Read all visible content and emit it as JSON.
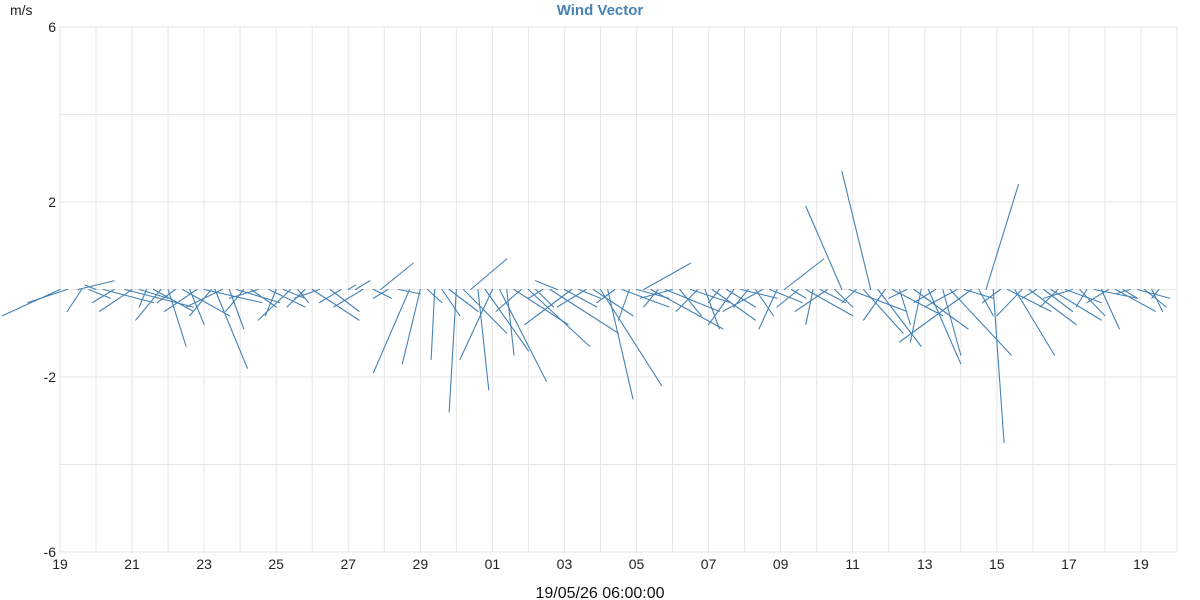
{
  "chart_data": {
    "type": "line",
    "title": "Wind Vector",
    "ylabel": "m/s",
    "xlabel": "19/05/26 06:00:00",
    "ylim": [
      -6,
      6
    ],
    "y_ticks": [
      "-6",
      "-2",
      "2",
      "6"
    ],
    "x_tick_labels": [
      "19",
      "21",
      "23",
      "25",
      "27",
      "29",
      "01",
      "03",
      "05",
      "07",
      "09",
      "11",
      "13",
      "15",
      "17",
      "19"
    ],
    "grid": true,
    "series": [
      {
        "color": "#4682b4",
        "vectors": [
          {
            "x": 19.0,
            "u": -1.6,
            "v": -0.6
          },
          {
            "x": 19.2,
            "u": -1.1,
            "v": -0.3
          },
          {
            "x": 19.5,
            "u": 1.0,
            "v": 0.2
          },
          {
            "x": 19.6,
            "u": -0.4,
            "v": -0.5
          },
          {
            "x": 19.8,
            "u": 0.6,
            "v": -0.2
          },
          {
            "x": 20.0,
            "u": -0.3,
            "v": 0.1
          },
          {
            "x": 20.2,
            "u": 1.4,
            "v": -0.3
          },
          {
            "x": 20.5,
            "u": -0.6,
            "v": -0.3
          },
          {
            "x": 20.8,
            "u": 1.9,
            "v": -0.4
          },
          {
            "x": 21.0,
            "u": -0.9,
            "v": -0.5
          },
          {
            "x": 21.2,
            "u": 0.8,
            "v": -0.2
          },
          {
            "x": 21.4,
            "u": -0.2,
            "v": -0.4
          },
          {
            "x": 21.6,
            "u": 1.1,
            "v": -0.5
          },
          {
            "x": 21.8,
            "u": -0.7,
            "v": -0.7
          },
          {
            "x": 22.0,
            "u": 0.5,
            "v": -1.3
          },
          {
            "x": 22.2,
            "u": -0.5,
            "v": -0.3
          },
          {
            "x": 22.4,
            "u": 1.3,
            "v": -0.6
          },
          {
            "x": 22.6,
            "u": 0.4,
            "v": -0.8
          },
          {
            "x": 22.8,
            "u": -0.9,
            "v": -0.5
          },
          {
            "x": 23.0,
            "u": 1.6,
            "v": -0.3
          },
          {
            "x": 23.2,
            "u": -0.6,
            "v": -0.6
          },
          {
            "x": 23.3,
            "u": 0.9,
            "v": -1.8
          },
          {
            "x": 23.5,
            "u": -1.0,
            "v": -0.4
          },
          {
            "x": 23.7,
            "u": 0.4,
            "v": -0.9
          },
          {
            "x": 23.9,
            "u": 1.2,
            "v": -0.3
          },
          {
            "x": 24.1,
            "u": -0.5,
            "v": -0.5
          },
          {
            "x": 24.3,
            "u": 0.7,
            "v": -0.4
          },
          {
            "x": 24.5,
            "u": -0.8,
            "v": -0.2
          },
          {
            "x": 24.8,
            "u": 1.0,
            "v": -0.4
          },
          {
            "x": 25.0,
            "u": -0.3,
            "v": -0.6
          },
          {
            "x": 25.2,
            "u": 0.6,
            "v": -0.2
          },
          {
            "x": 25.4,
            "u": -0.9,
            "v": -0.7
          },
          {
            "x": 25.6,
            "u": 0.3,
            "v": -0.3
          },
          {
            "x": 25.8,
            "u": -0.5,
            "v": -0.4
          },
          {
            "x": 26.0,
            "u": 1.3,
            "v": -0.7
          },
          {
            "x": 26.2,
            "u": -0.7,
            "v": -0.2
          },
          {
            "x": 26.5,
            "u": 0.8,
            "v": -0.5
          },
          {
            "x": 26.8,
            "u": -0.6,
            "v": -0.3
          },
          {
            "x": 27.0,
            "u": 0.2,
            "v": 0.1
          },
          {
            "x": 27.2,
            "u": 0.4,
            "v": 0.2
          },
          {
            "x": 27.4,
            "u": -0.8,
            "v": -0.4
          },
          {
            "x": 27.7,
            "u": 0.5,
            "v": -0.2
          },
          {
            "x": 27.9,
            "u": 0.9,
            "v": 0.6
          },
          {
            "x": 28.1,
            "u": -0.4,
            "v": -0.2
          },
          {
            "x": 28.4,
            "u": 0.6,
            "v": -0.1
          },
          {
            "x": 28.7,
            "u": -1.0,
            "v": -1.9
          },
          {
            "x": 29.0,
            "u": -0.5,
            "v": -1.7
          },
          {
            "x": 29.2,
            "u": 0.4,
            "v": -0.3
          },
          {
            "x": 29.4,
            "u": -0.1,
            "v": -1.6
          },
          {
            "x": 29.6,
            "u": 0.5,
            "v": -0.6
          },
          {
            "x": 29.8,
            "u": 0.8,
            "v": -0.5
          },
          {
            "x": 30.0,
            "u": -0.2,
            "v": -2.8
          },
          {
            "x": 30.2,
            "u": 1.2,
            "v": -1.0
          },
          {
            "x": 30.4,
            "u": 1.0,
            "v": 0.7
          },
          {
            "x": 30.6,
            "u": 0.3,
            "v": -2.3
          },
          {
            "x": 30.8,
            "u": 1.2,
            "v": -1.4
          },
          {
            "x": 31.0,
            "u": -0.9,
            "v": -1.6
          },
          {
            "x": 31.2,
            "u": 1.3,
            "v": -2.1
          },
          {
            "x": 31.4,
            "u": 0.2,
            "v": -1.5
          },
          {
            "x": 31.6,
            "u": 1.5,
            "v": -0.8
          },
          {
            "x": 31.8,
            "u": -0.7,
            "v": -0.5
          },
          {
            "x": 32.0,
            "u": 1.7,
            "v": -1.3
          },
          {
            "x": 32.2,
            "u": 0.5,
            "v": -0.4
          },
          {
            "x": 32.4,
            "u": -0.4,
            "v": -0.2
          },
          {
            "x": 32.6,
            "u": 1.9,
            "v": -1.0
          },
          {
            "x": 32.8,
            "u": -0.6,
            "v": 0.2
          },
          {
            "x": 33.0,
            "u": 0.9,
            "v": -0.4
          },
          {
            "x": 33.2,
            "u": -1.3,
            "v": -0.8
          },
          {
            "x": 33.4,
            "u": 0.6,
            "v": -0.2
          },
          {
            "x": 33.6,
            "u": -0.8,
            "v": -0.4
          },
          {
            "x": 33.8,
            "u": 1.1,
            "v": -0.6
          },
          {
            "x": 34.0,
            "u": 1.7,
            "v": -2.2
          },
          {
            "x": 34.2,
            "u": 0.7,
            "v": -2.5
          },
          {
            "x": 34.4,
            "u": -0.5,
            "v": -0.3
          },
          {
            "x": 34.6,
            "u": 1.3,
            "v": -0.4
          },
          {
            "x": 34.8,
            "u": -0.3,
            "v": -0.7
          },
          {
            "x": 35.0,
            "u": 0.9,
            "v": -0.2
          },
          {
            "x": 35.2,
            "u": 1.3,
            "v": 0.6
          },
          {
            "x": 35.4,
            "u": 2.0,
            "v": -0.9
          },
          {
            "x": 35.6,
            "u": -0.4,
            "v": -0.4
          },
          {
            "x": 35.8,
            "u": 1.5,
            "v": -0.5
          },
          {
            "x": 36.0,
            "u": -0.9,
            "v": -0.2
          },
          {
            "x": 36.2,
            "u": 0.6,
            "v": -0.6
          },
          {
            "x": 36.5,
            "u": 1.1,
            "v": -0.3
          },
          {
            "x": 36.7,
            "u": -0.6,
            "v": -0.5
          },
          {
            "x": 36.9,
            "u": 0.4,
            "v": -0.9
          },
          {
            "x": 37.1,
            "u": 1.2,
            "v": -0.7
          },
          {
            "x": 37.3,
            "u": -0.3,
            "v": -0.3
          },
          {
            "x": 37.5,
            "u": 0.8,
            "v": -0.4
          },
          {
            "x": 37.7,
            "u": -0.7,
            "v": -0.8
          },
          {
            "x": 37.9,
            "u": 1.0,
            "v": -0.2
          },
          {
            "x": 38.1,
            "u": -0.4,
            "v": -0.4
          },
          {
            "x": 38.3,
            "u": 0.5,
            "v": -0.6
          },
          {
            "x": 38.5,
            "u": -1.1,
            "v": -0.5
          },
          {
            "x": 38.7,
            "u": 0.9,
            "v": -0.3
          },
          {
            "x": 38.9,
            "u": -0.5,
            "v": -0.9
          },
          {
            "x": 39.1,
            "u": 1.1,
            "v": 0.7
          },
          {
            "x": 39.3,
            "u": 0.4,
            "v": -0.2
          },
          {
            "x": 39.5,
            "u": -0.6,
            "v": -0.4
          },
          {
            "x": 39.7,
            "u": 1.3,
            "v": -0.6
          },
          {
            "x": 39.9,
            "u": -0.2,
            "v": -0.8
          },
          {
            "x": 40.1,
            "u": 0.7,
            "v": -0.3
          },
          {
            "x": 40.3,
            "u": -0.9,
            "v": -0.5
          },
          {
            "x": 40.5,
            "u": 0.5,
            "v": -0.4
          },
          {
            "x": 40.7,
            "u": -1.0,
            "v": 1.9
          },
          {
            "x": 40.9,
            "u": 1.6,
            "v": -0.5
          },
          {
            "x": 41.1,
            "u": -0.4,
            "v": -0.3
          },
          {
            "x": 41.3,
            "u": 1.1,
            "v": -1.0
          },
          {
            "x": 41.5,
            "u": -0.8,
            "v": 2.7
          },
          {
            "x": 41.7,
            "u": 1.2,
            "v": -1.3
          },
          {
            "x": 41.9,
            "u": -0.6,
            "v": -0.7
          },
          {
            "x": 42.1,
            "u": 1.4,
            "v": -0.6
          },
          {
            "x": 42.3,
            "u": 0.3,
            "v": -0.8
          },
          {
            "x": 42.5,
            "u": -0.5,
            "v": -0.2
          },
          {
            "x": 42.7,
            "u": 1.5,
            "v": -0.9
          },
          {
            "x": 42.9,
            "u": -0.3,
            "v": -1.2
          },
          {
            "x": 43.1,
            "u": 0.9,
            "v": -1.7
          },
          {
            "x": 43.3,
            "u": -0.6,
            "v": -0.3
          },
          {
            "x": 43.5,
            "u": 0.5,
            "v": -1.5
          },
          {
            "x": 43.7,
            "u": 1.7,
            "v": -1.5
          },
          {
            "x": 43.9,
            "u": -0.9,
            "v": -0.4
          },
          {
            "x": 44.1,
            "u": 0.8,
            "v": -0.2
          },
          {
            "x": 44.3,
            "u": -2.0,
            "v": -1.2
          },
          {
            "x": 44.5,
            "u": 0.4,
            "v": -0.6
          },
          {
            "x": 44.7,
            "u": 0.9,
            "v": 2.4
          },
          {
            "x": 44.9,
            "u": 0.3,
            "v": -3.5
          },
          {
            "x": 45.1,
            "u": -0.5,
            "v": -0.3
          },
          {
            "x": 45.3,
            "u": 1.2,
            "v": -0.5
          },
          {
            "x": 45.5,
            "u": 1.1,
            "v": -1.5
          },
          {
            "x": 45.7,
            "u": -0.7,
            "v": -0.6
          },
          {
            "x": 45.9,
            "u": 1.3,
            "v": -0.8
          },
          {
            "x": 46.1,
            "u": -0.4,
            "v": -0.2
          },
          {
            "x": 46.3,
            "u": 0.8,
            "v": -0.5
          },
          {
            "x": 46.5,
            "u": 1.4,
            "v": -0.7
          },
          {
            "x": 46.7,
            "u": -0.5,
            "v": -0.4
          },
          {
            "x": 46.9,
            "u": 1.0,
            "v": -0.3
          },
          {
            "x": 47.1,
            "u": -0.8,
            "v": -0.2
          },
          {
            "x": 47.3,
            "u": 0.7,
            "v": -0.6
          },
          {
            "x": 47.5,
            "u": -0.3,
            "v": -0.4
          },
          {
            "x": 47.7,
            "u": 1.2,
            "v": -0.2
          },
          {
            "x": 47.9,
            "u": 0.5,
            "v": -0.9
          },
          {
            "x": 48.1,
            "u": -0.6,
            "v": -0.3
          },
          {
            "x": 48.3,
            "u": 1.1,
            "v": -0.5
          },
          {
            "x": 48.5,
            "u": 0.4,
            "v": -0.2
          },
          {
            "x": 48.7,
            "u": -0.4,
            "v": -0.1
          },
          {
            "x": 48.9,
            "u": 0.9,
            "v": -0.2
          },
          {
            "x": 49.1,
            "u": 0.6,
            "v": -0.4
          },
          {
            "x": 49.3,
            "u": 0.3,
            "v": -0.5
          },
          {
            "x": 49.5,
            "u": -0.2,
            "v": -0.2
          }
        ]
      }
    ]
  }
}
